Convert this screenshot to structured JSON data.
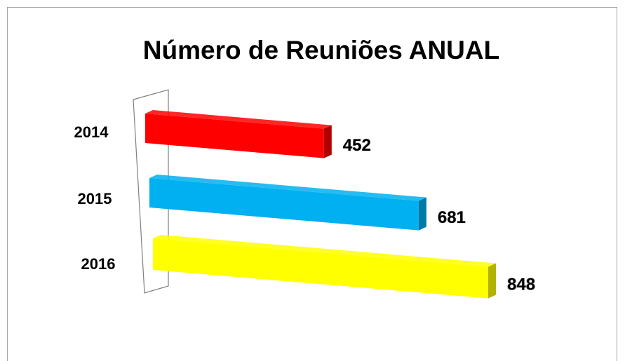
{
  "chart_data": {
    "type": "bar3d",
    "title": "Número de Reuniões ANUAL",
    "categories": [
      "2014",
      "2015",
      "2016"
    ],
    "values": [
      452,
      681,
      848
    ],
    "colors": [
      "#ff0000",
      "#00b0f0",
      "#ffff00"
    ]
  }
}
